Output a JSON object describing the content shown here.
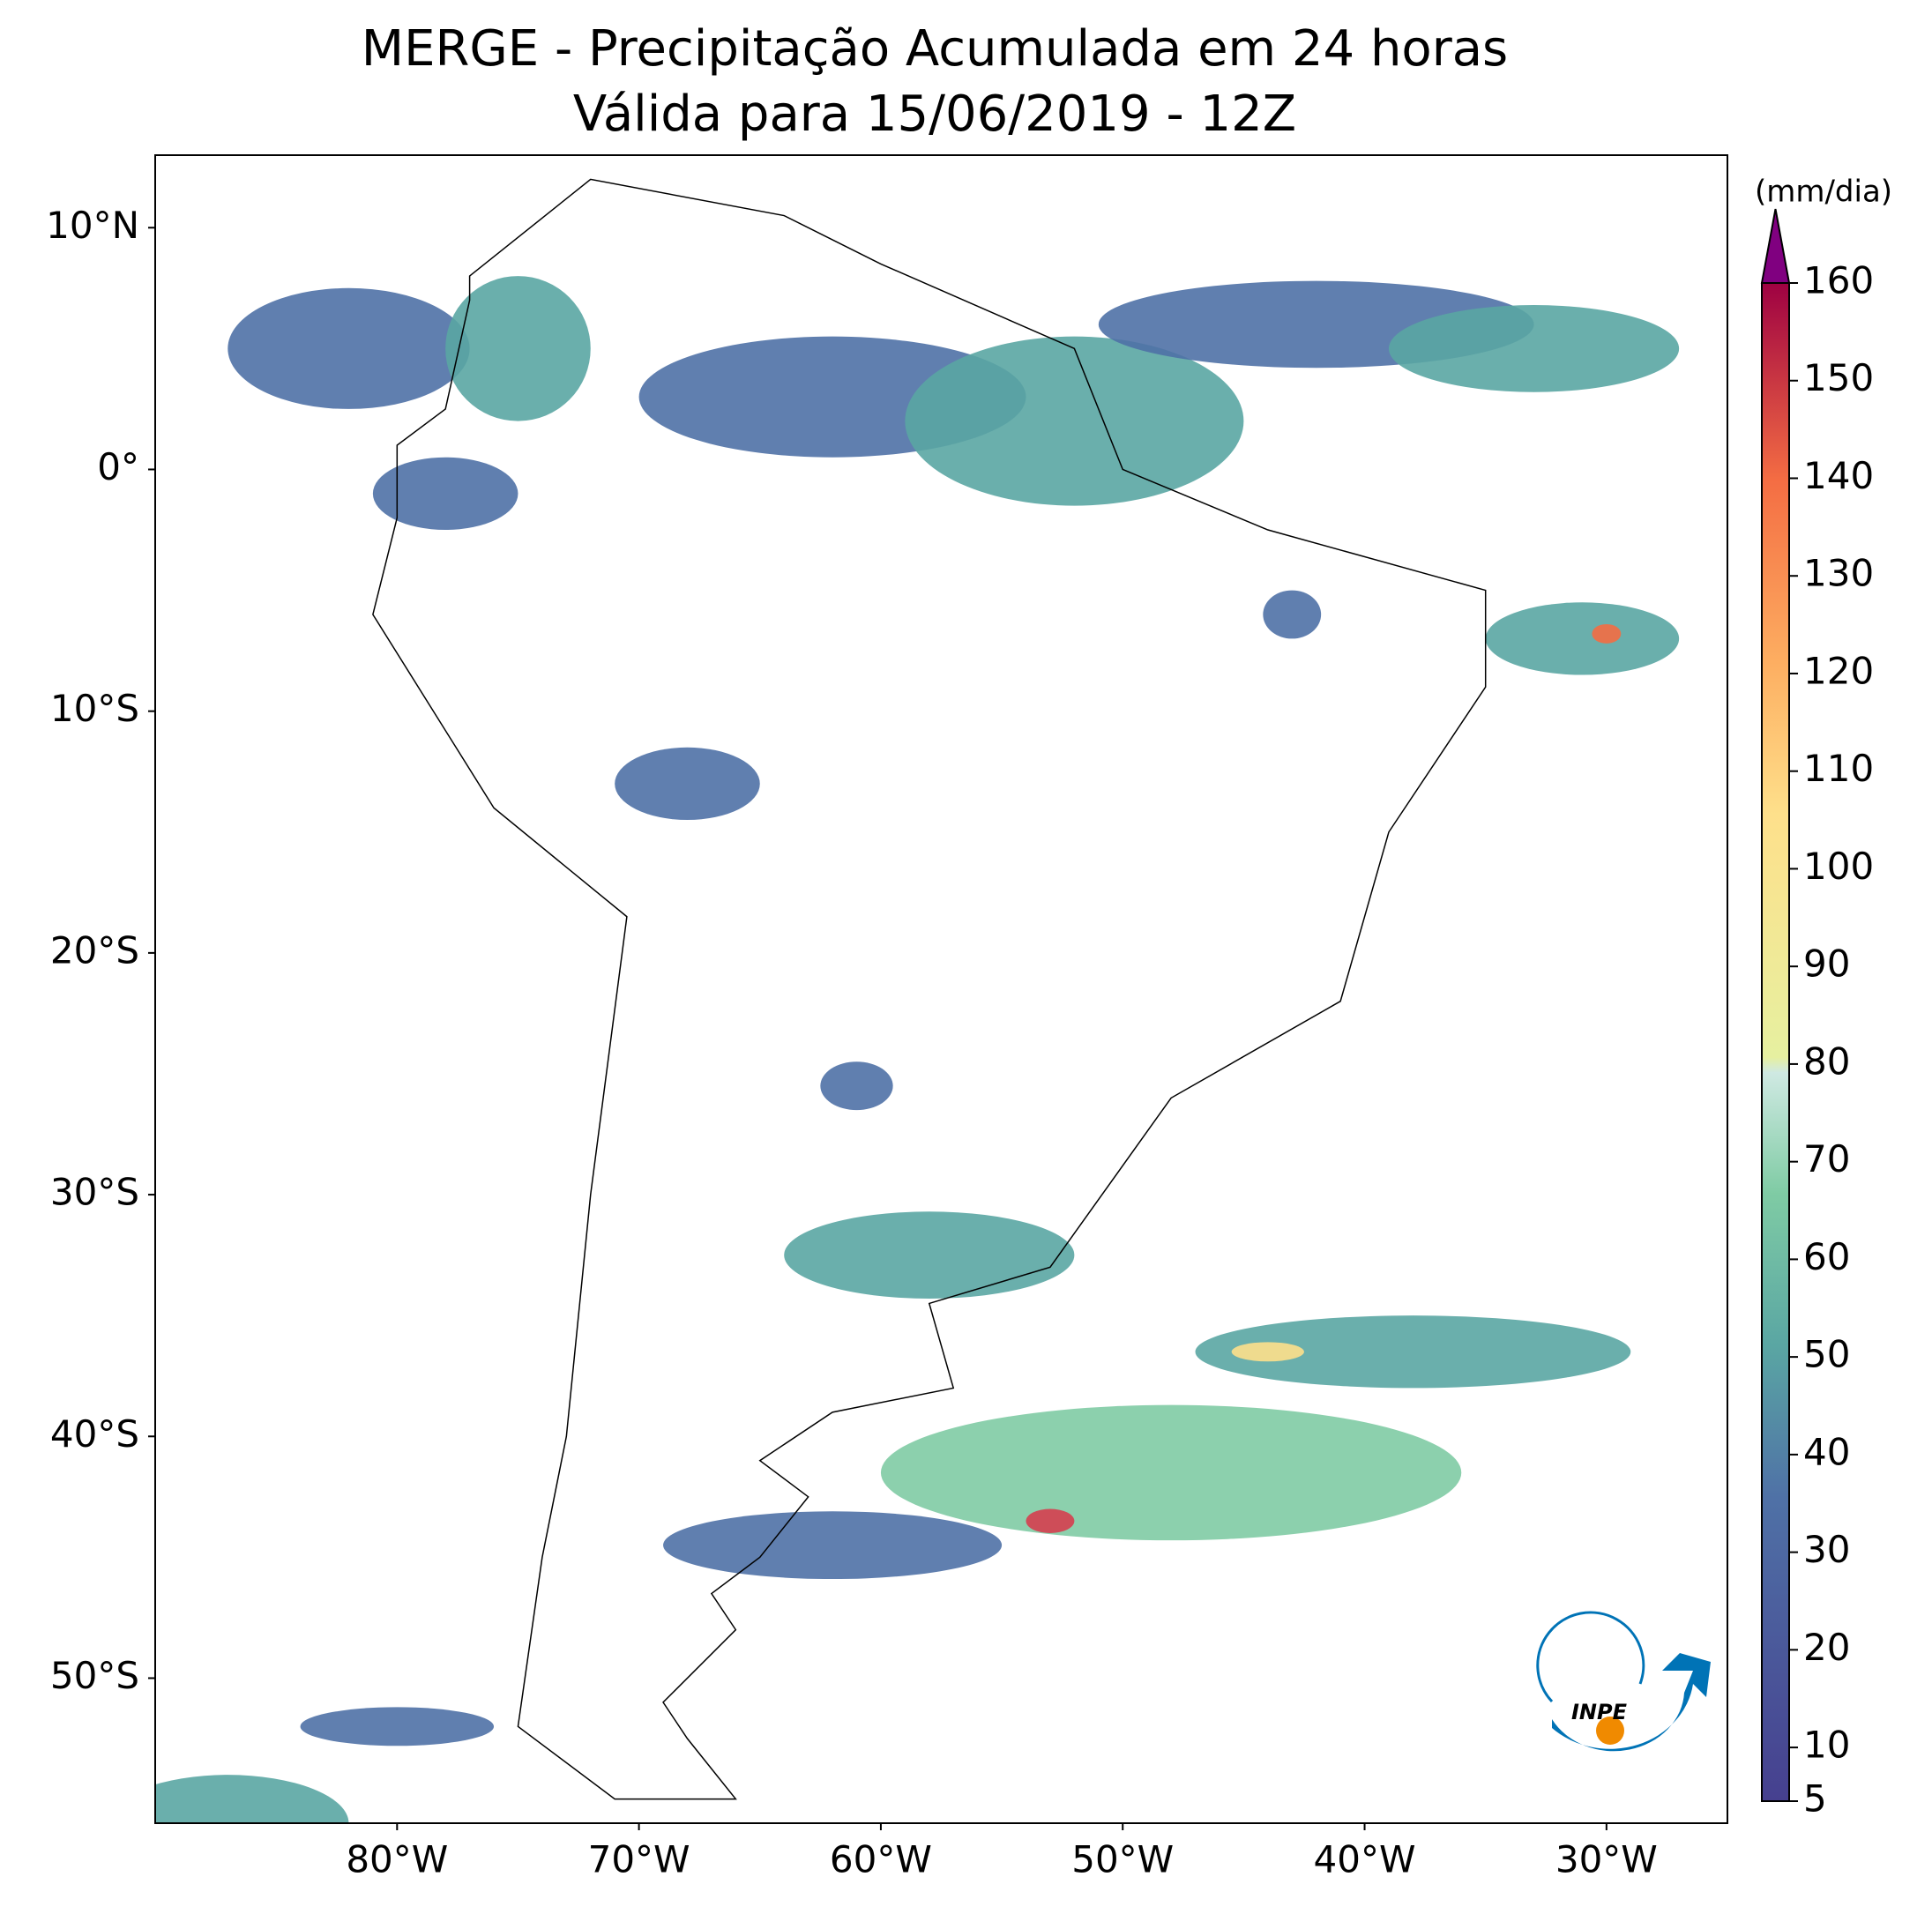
{
  "title": "MERGE - Precipitação Acumulada em 24 horas",
  "subtitle": "Válida para 15/06/2019 - 12Z",
  "map": {
    "xlim": [
      -90,
      -25
    ],
    "ylim": [
      -56,
      13
    ],
    "lat_ticks": [
      {
        "value": 10,
        "label": "10°N"
      },
      {
        "value": 0,
        "label": "0°"
      },
      {
        "value": -10,
        "label": "10°S"
      },
      {
        "value": -20,
        "label": "20°S"
      },
      {
        "value": -30,
        "label": "30°S"
      },
      {
        "value": -40,
        "label": "40°S"
      },
      {
        "value": -50,
        "label": "50°S"
      }
    ],
    "lon_ticks": [
      {
        "value": -80,
        "label": "80°W"
      },
      {
        "value": -70,
        "label": "70°W"
      },
      {
        "value": -60,
        "label": "60°W"
      },
      {
        "value": -50,
        "label": "50°W"
      },
      {
        "value": -40,
        "label": "40°W"
      },
      {
        "value": -30,
        "label": "30°W"
      }
    ]
  },
  "colorbar": {
    "label": "(mm/dia)",
    "ticks": [
      5,
      10,
      20,
      30,
      40,
      50,
      60,
      70,
      80,
      90,
      100,
      110,
      120,
      130,
      140,
      150,
      160
    ]
  },
  "logo": "INPE"
}
